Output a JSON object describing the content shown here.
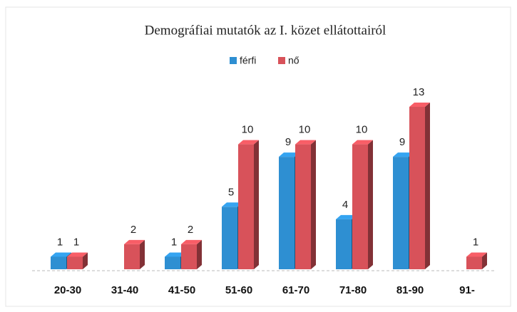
{
  "chart_data": {
    "type": "bar3d",
    "title": "Demográfiai mutatók az I. közet ellátottairól",
    "categories": [
      "20-30",
      "31-40",
      "41-50",
      "51-60",
      "61-70",
      "71-80",
      "81-90",
      "91-"
    ],
    "series": [
      {
        "name": "férfi",
        "color": "#2e8fd2",
        "values": [
          1,
          null,
          1,
          5,
          9,
          4,
          9,
          null
        ]
      },
      {
        "name": "nő",
        "color": "#d8525a",
        "values": [
          1,
          2,
          2,
          10,
          10,
          10,
          13,
          1
        ]
      }
    ],
    "legend": "top"
  }
}
